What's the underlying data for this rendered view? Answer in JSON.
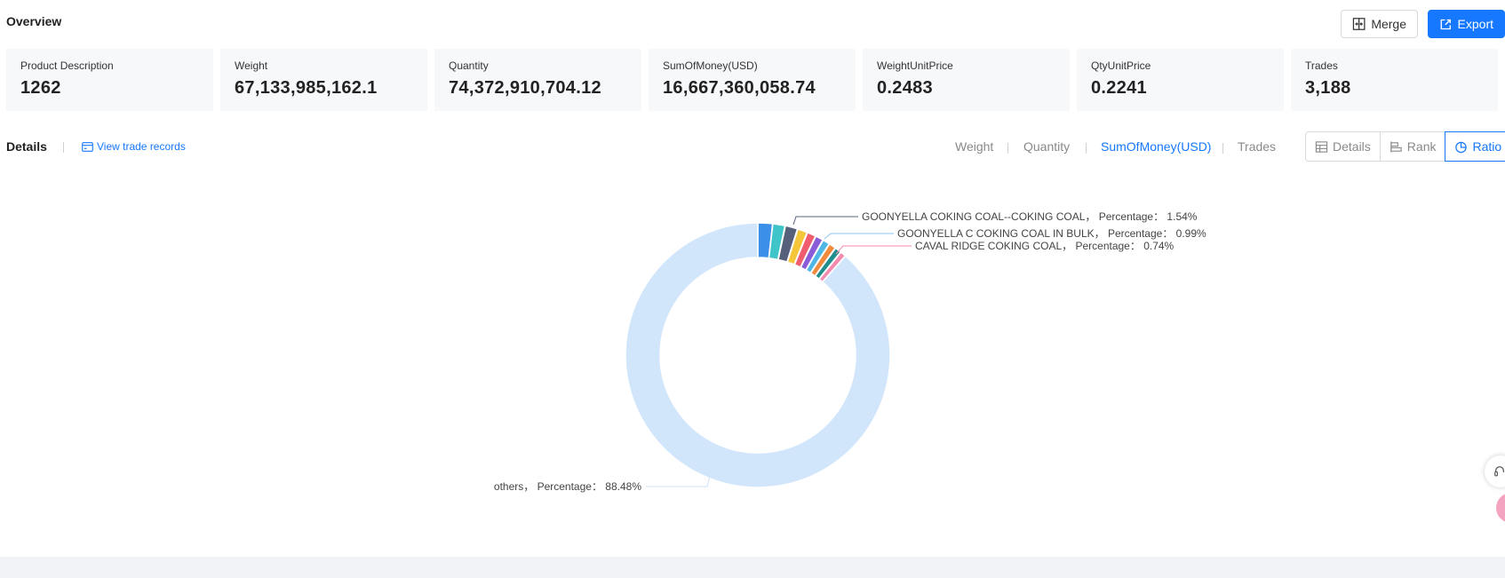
{
  "overview": {
    "title": "Overview"
  },
  "actions": {
    "merge_label": "Merge",
    "export_label": "Export"
  },
  "stats": [
    {
      "label": "Product Description",
      "value": "1262"
    },
    {
      "label": "Weight",
      "value": "67,133,985,162.1"
    },
    {
      "label": "Quantity",
      "value": "74,372,910,704.12"
    },
    {
      "label": "SumOfMoney(USD)",
      "value": "16,667,360,058.74"
    },
    {
      "label": "WeightUnitPrice",
      "value": "0.2483"
    },
    {
      "label": "QtyUnitPrice",
      "value": "0.2241"
    },
    {
      "label": "Trades",
      "value": "3,188"
    }
  ],
  "details": {
    "title": "Details",
    "view_records_label": "View trade records"
  },
  "metric_tabs": {
    "weight": "Weight",
    "quantity": "Quantity",
    "sum": "SumOfMoney(USD)",
    "trades": "Trades",
    "active": "SumOfMoney(USD)"
  },
  "view_buttons": {
    "details": "Details",
    "rank": "Rank",
    "ratio": "Ratio",
    "active": "Ratio"
  },
  "chart_data": {
    "type": "pie",
    "variant": "donut",
    "slices": [
      {
        "value": 1.78,
        "color": "#3b8fe8"
      },
      {
        "value": 1.54,
        "color": "#3fc4c9",
        "label": "GOONYELLA COKING COAL--COKING COAL，  Percentage： 1.54%"
      },
      {
        "value": 1.54,
        "color": "#56607a"
      },
      {
        "value": 1.24,
        "color": "#f5c53a"
      },
      {
        "value": 1.1,
        "color": "#ef5d6f"
      },
      {
        "value": 0.99,
        "color": "#8a5cd8",
        "label": "GOONYELLA C COKING COAL IN BULK，  Percentage： 0.99%"
      },
      {
        "value": 0.9,
        "color": "#4fb7e6"
      },
      {
        "value": 0.88,
        "color": "#f08a3c"
      },
      {
        "value": 0.81,
        "color": "#1f8e8c"
      },
      {
        "value": 0.74,
        "color": "#f48ab0",
        "label": "CAVAL RIDGE COKING COAL，  Percentage： 0.74%"
      },
      {
        "value": 88.48,
        "color": "#d2e6fb",
        "label": "others，  Percentage： 88.48%"
      }
    ]
  }
}
